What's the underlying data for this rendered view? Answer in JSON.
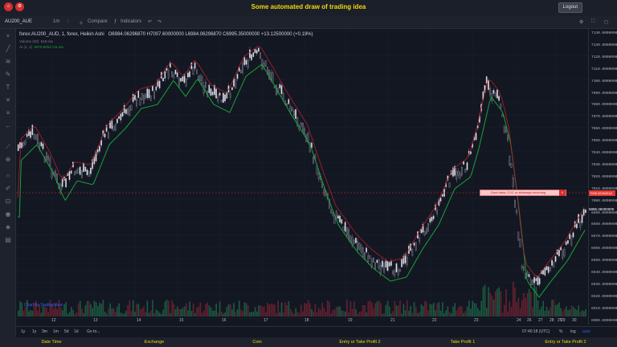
{
  "app": {
    "title": "Some automated draw of trading idea",
    "logout_label": "Logout"
  },
  "toolbar": {
    "symbol": "AU200_AUE",
    "interval": "1m",
    "compare_label": "Compare",
    "indicators_label": "Indicators"
  },
  "legend": {
    "main": "forex:AU200_AUD, 1, forex, Heikin Ashi",
    "ohlc": "O6984.06296870  H7007.60000000  L6984.06296870  C6995.35000000  +13.12500000 (+0.19%)",
    "volume": "Volume (20)",
    "volume_values": "618  n/a",
    "ai": "AI (1, 1)",
    "ai_values": "6975.8052  n/a  n/a"
  },
  "price_axis": {
    "labels": [
      "7140.00000000",
      "7130.00000000",
      "7120.00000000",
      "7110.00000000",
      "7100.00000000",
      "7090.00000000",
      "7080.00000000",
      "7070.00000000",
      "7060.00000000",
      "7050.00000000",
      "7040.00000000",
      "7030.00000000",
      "7020.00000000",
      "7010.00000000",
      "7000.00000000",
      "6990.00000000",
      "6980.00000000",
      "6970.00000000",
      "6960.00000000",
      "6950.00000000",
      "6940.00000000",
      "6930.00000000",
      "6920.00000000",
      "6910.00000000",
      "6900.00000000"
    ],
    "alert_price": "7005.32263316",
    "last_price": "6995.35000000"
  },
  "time_axis": {
    "labels": [
      "12",
      "13",
      "14",
      "15",
      "16",
      "17",
      "18",
      "19",
      "21",
      "22",
      "23",
      "24",
      "25",
      "26",
      "27",
      "28",
      "29",
      "30"
    ]
  },
  "alert": {
    "text": "Dont draw, CVC or sideways incoming",
    "close": "X"
  },
  "bottom": {
    "ranges": [
      "1y",
      "1y",
      "3m",
      "1m",
      "5d",
      "1d"
    ],
    "goto": "Go to...",
    "clock": "07:40:18 (UTC)",
    "pct": "%",
    "log": "log",
    "auto": "auto"
  },
  "watermark": "Chart by TradingView",
  "footer": {
    "items": [
      "Date Time",
      "Exchange",
      "Coin",
      "Entry or Take Profit 2",
      "Take Profit 1",
      "Entry or Take Profit 2"
    ]
  },
  "colors": {
    "up": "#e0e3eb",
    "down": "#26293a",
    "ma": "#18a23a",
    "ma2": "#b21f2d",
    "alert": "#d32f2f",
    "accent": "#f5d90a"
  }
}
